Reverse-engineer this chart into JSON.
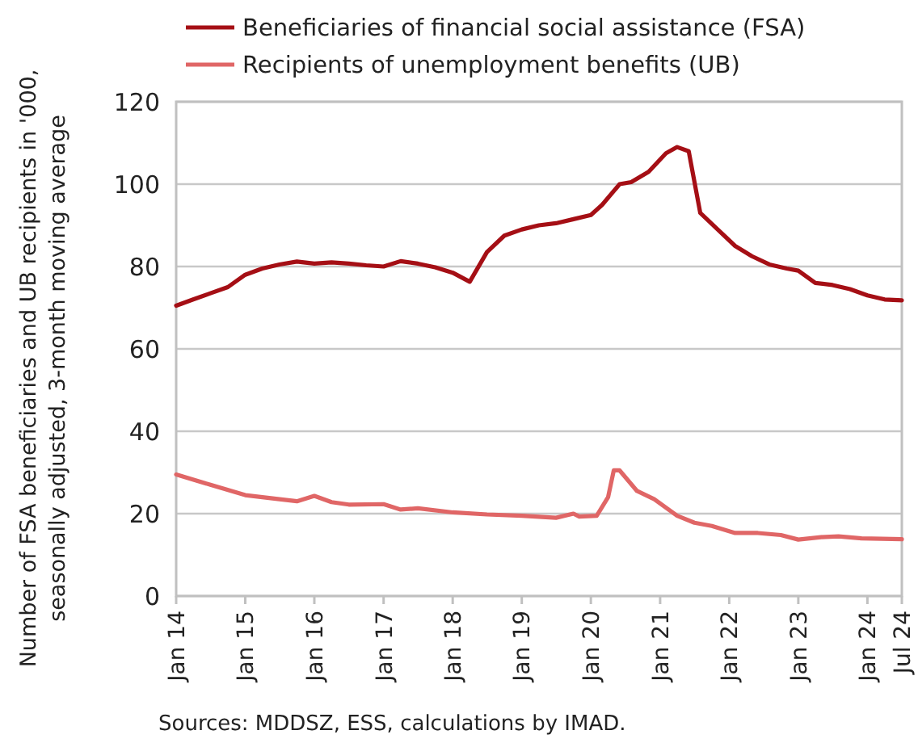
{
  "chart_data": {
    "type": "line",
    "ylabel": "Number of FSA beneficiaries and UB recipients in '000, seasonally adjusted, 3-month moving average",
    "annotations": [
      "Sources: MDDSZ, ESS, calculations by IMAD."
    ],
    "xlim": [
      "2014-01",
      "2024-07"
    ],
    "xticks": [
      {
        "value": "2014-01",
        "label": "Jan 14"
      },
      {
        "value": "2015-01",
        "label": "Jan 15"
      },
      {
        "value": "2016-01",
        "label": "Jan 16"
      },
      {
        "value": "2017-01",
        "label": "Jan 17"
      },
      {
        "value": "2018-01",
        "label": "Jan 18"
      },
      {
        "value": "2019-01",
        "label": "Jan 19"
      },
      {
        "value": "2020-01",
        "label": "Jan 20"
      },
      {
        "value": "2021-01",
        "label": "Jan 21"
      },
      {
        "value": "2022-01",
        "label": "Jan 22"
      },
      {
        "value": "2023-01",
        "label": "Jan 23"
      },
      {
        "value": "2024-01",
        "label": "Jan 24"
      },
      {
        "value": "2024-07",
        "label": "Jul 24"
      }
    ],
    "ylim": [
      0,
      120
    ],
    "yticks": [
      0,
      20,
      40,
      60,
      80,
      100,
      120
    ],
    "grid": "y",
    "legend": "top",
    "line_style": "solid",
    "series": [
      {
        "name": "Beneficiaries of financial social assistance (FSA)",
        "color": "#a50f15",
        "x": [
          "2014-01",
          "2014-04",
          "2014-07",
          "2014-10",
          "2015-01",
          "2015-04",
          "2015-07",
          "2015-10",
          "2016-01",
          "2016-04",
          "2016-07",
          "2016-10",
          "2017-01",
          "2017-04",
          "2017-07",
          "2017-10",
          "2018-01",
          "2018-04",
          "2018-07",
          "2018-10",
          "2019-01",
          "2019-04",
          "2019-07",
          "2019-10",
          "2020-01",
          "2020-03",
          "2020-06",
          "2020-08",
          "2020-11",
          "2021-02",
          "2021-04",
          "2021-06",
          "2021-08",
          "2021-11",
          "2022-02",
          "2022-05",
          "2022-08",
          "2022-11",
          "2023-01",
          "2023-04",
          "2023-07",
          "2023-10",
          "2024-01",
          "2024-04",
          "2024-07"
        ],
        "values": [
          70.5,
          72,
          73.5,
          75,
          78,
          79.5,
          80.5,
          81.2,
          80.7,
          81,
          80.7,
          80.3,
          80,
          81.3,
          80.7,
          79.8,
          78.5,
          76.3,
          83.5,
          87.5,
          89,
          90,
          90.5,
          91.5,
          92.5,
          95,
          100,
          100.5,
          103,
          107.5,
          109,
          108,
          93,
          89,
          85,
          82.5,
          80.5,
          79.5,
          79,
          76,
          75.5,
          74.5,
          73,
          72,
          71.8
        ]
      },
      {
        "name": "Recipients of unemployment benefits (UB)",
        "color": "#e06666",
        "x": [
          "2014-01",
          "2014-07",
          "2015-01",
          "2015-07",
          "2015-10",
          "2016-01",
          "2016-04",
          "2016-07",
          "2017-01",
          "2017-04",
          "2017-07",
          "2018-01",
          "2018-07",
          "2019-01",
          "2019-07",
          "2019-10",
          "2019-11",
          "2020-02",
          "2020-04",
          "2020-05",
          "2020-06",
          "2020-09",
          "2020-12",
          "2021-04",
          "2021-07",
          "2021-10",
          "2022-02",
          "2022-06",
          "2022-10",
          "2023-01",
          "2023-05",
          "2023-08",
          "2023-12",
          "2024-07"
        ],
        "values": [
          29.5,
          27,
          24.5,
          23.5,
          23,
          24.3,
          22.8,
          22.2,
          22.3,
          21,
          21.3,
          20.3,
          19.8,
          19.5,
          19,
          20,
          19.3,
          19.5,
          24,
          30.5,
          30.5,
          25.5,
          23.5,
          19.5,
          17.8,
          17,
          15.3,
          15.3,
          14.8,
          13.7,
          14.3,
          14.5,
          14,
          13.8
        ]
      }
    ]
  }
}
